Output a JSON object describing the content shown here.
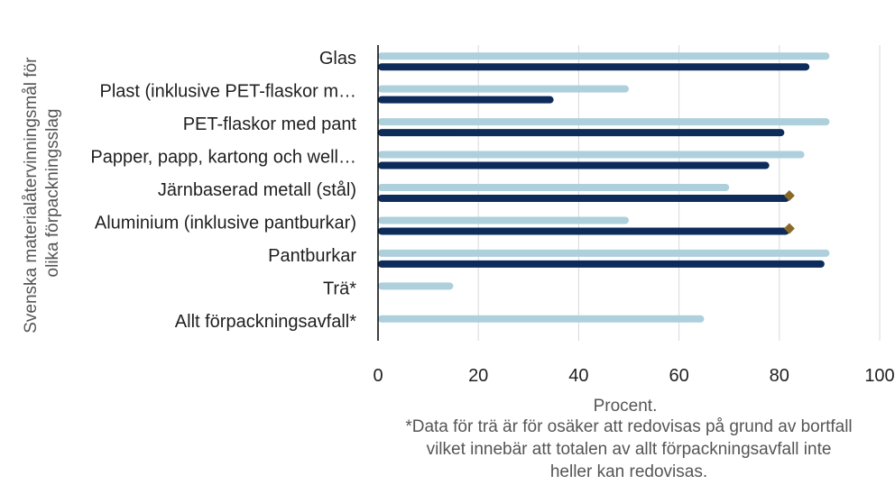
{
  "chart_data": {
    "type": "bar",
    "orientation": "horizontal",
    "categories": [
      "Glas",
      "Plast (inklusive PET-flaskor m…",
      "PET-flaskor med pant",
      "Papper, papp, kartong och well…",
      "Järnbaserad metall (stål)",
      "Aluminium (inklusive pantburkar)",
      "Pantburkar",
      "Trä*",
      "Allt förpackningsavfall*"
    ],
    "series": [
      {
        "color": "#aecfdc",
        "values": [
          90,
          50,
          90,
          85,
          70,
          50,
          90,
          15,
          65
        ]
      },
      {
        "color": "#0d2b5b",
        "values": [
          86,
          35,
          81,
          78,
          82,
          82,
          89,
          null,
          null
        ]
      }
    ],
    "markers": {
      "color": "#8a6a2a",
      "shape": "diamond",
      "values": [
        null,
        null,
        null,
        null,
        82,
        82,
        null,
        null,
        null
      ]
    },
    "xlim": [
      0,
      100
    ],
    "xticks": [
      "0",
      "20",
      "40",
      "60",
      "80",
      "100"
    ],
    "ylabel": "Svenska materialåtervinningsmål för olika förpackningsslag",
    "xlabel": "Procent.",
    "footnote": [
      "*Data för trä är för osäker att redovisas på grund av bortfall",
      "vilket innebär att totalen av allt förpackningsavfall inte",
      "heller kan redovisas."
    ],
    "grid": true,
    "legend": "none"
  }
}
